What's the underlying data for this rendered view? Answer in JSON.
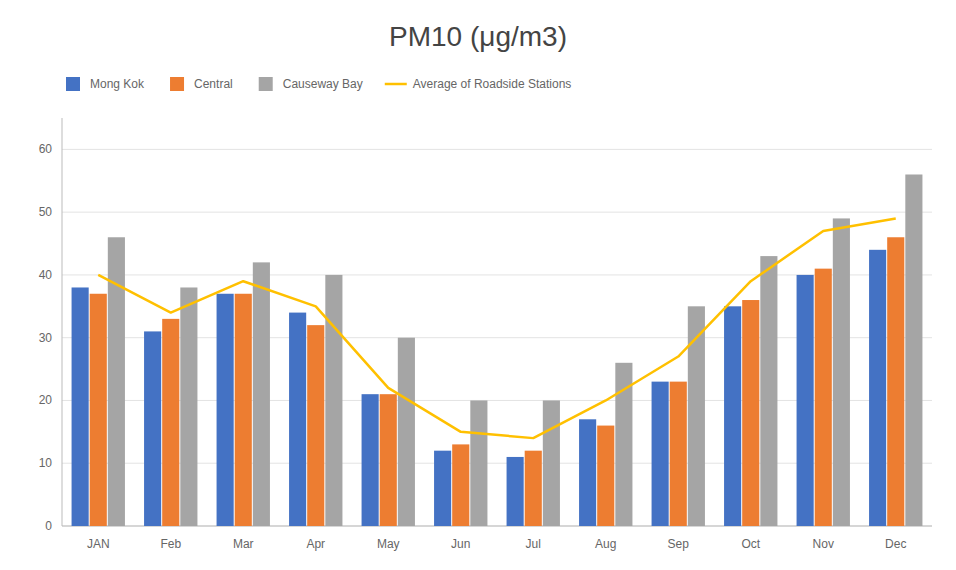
{
  "chart_data": {
    "type": "bar",
    "title": "PM10 (μg/m3)",
    "categories": [
      "JAN",
      "Feb",
      "Mar",
      "Apr",
      "May",
      "Jun",
      "Jul",
      "Aug",
      "Sep",
      "Oct",
      "Nov",
      "Dec"
    ],
    "series": [
      {
        "name": "Mong Kok",
        "color": "#4472C4",
        "values": [
          38,
          31,
          37,
          34,
          21,
          12,
          11,
          17,
          23,
          35,
          40,
          44
        ]
      },
      {
        "name": "Central",
        "color": "#ED7D31",
        "values": [
          37,
          33,
          37,
          32,
          21,
          13,
          12,
          16,
          23,
          36,
          41,
          46
        ]
      },
      {
        "name": "Causeway Bay",
        "color": "#A5A5A5",
        "values": [
          46,
          38,
          42,
          40,
          30,
          20,
          20,
          26,
          35,
          43,
          49,
          56
        ]
      },
      {
        "name": "Average of Roadside Stations",
        "type": "line",
        "color": "#FFC000",
        "values": [
          40,
          34,
          39,
          35,
          22,
          15,
          14,
          20,
          27,
          39,
          47,
          49
        ]
      }
    ],
    "ylim": [
      0,
      65
    ],
    "yticks": [
      0,
      10,
      20,
      30,
      40,
      50,
      60
    ],
    "grid": true,
    "legend": "top"
  }
}
